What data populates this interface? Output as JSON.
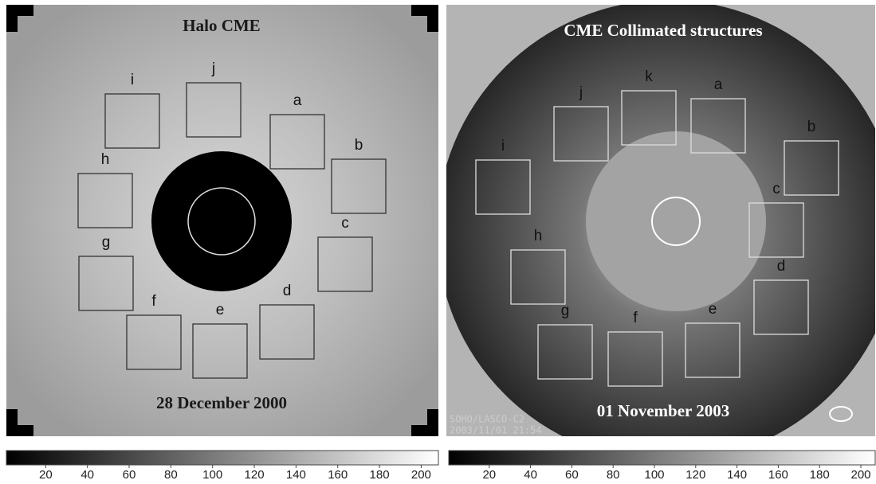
{
  "panels": [
    {
      "title": "Halo CME",
      "date": "28 December 2000",
      "boxes": [
        "i",
        "j",
        "a",
        "b",
        "c",
        "d",
        "e",
        "f",
        "g",
        "h"
      ],
      "colorbar": {
        "ticks": [
          20,
          40,
          60,
          80,
          100,
          120,
          140,
          160,
          180,
          200
        ]
      }
    },
    {
      "title": "CME Collimated structures",
      "date": "01 November 2003",
      "instrument": "SOHO/LASCO-C2",
      "timestamp": "2003/11/01 21:54",
      "boxes": [
        "i",
        "j",
        "k",
        "a",
        "b",
        "c",
        "d",
        "e",
        "f",
        "g",
        "h"
      ],
      "colorbar": {
        "ticks": [
          20,
          40,
          60,
          80,
          100,
          120,
          140,
          160,
          180,
          200
        ]
      }
    }
  ]
}
